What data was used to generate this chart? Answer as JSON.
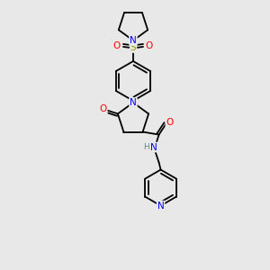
{
  "bg_color": "#e8e8e8",
  "atom_colors": {
    "N": "#0000FF",
    "O": "#FF0000",
    "S": "#999900",
    "C": "#000000",
    "H": "#558888"
  },
  "font_size_atom": 7.5,
  "font_size_small": 6.5
}
